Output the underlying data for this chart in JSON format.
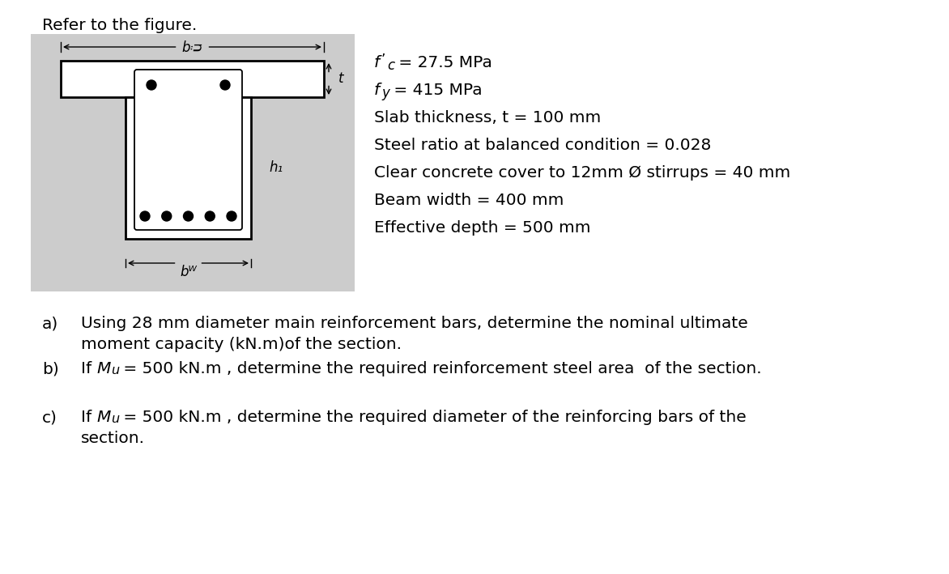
{
  "title": "Refer to the figure.",
  "props_fc": "f’c = 27.5 MPa",
  "props_fy": "fy = 415 MPa",
  "props_lines": [
    "Slab thickness, t = 100 mm",
    "Steel ratio at balanced condition = 0.028",
    "Clear concrete cover to 12mm Ø stirrups = 40 mm",
    "Beam width = 400 mm",
    "Effective depth = 500 mm"
  ],
  "q_a_label": "a)",
  "q_a_line1": "Using 28 mm diameter main reinforcement bars, determine the nominal ultimate",
  "q_a_line2": "moment capacity (kN.m)of the section.",
  "q_b_label": "b)",
  "q_b_line1": "If Mu = 500 kN.m , determine the required reinforcement steel area  of the section.",
  "q_c_label": "c)",
  "q_c_line1": "If Mu = 500 kN.m , determine the required diameter of the reinforcing bars of the",
  "q_c_line2": "section.",
  "bg_color": "#ffffff",
  "fig_bg": "#cccccc",
  "lw": 2.0
}
